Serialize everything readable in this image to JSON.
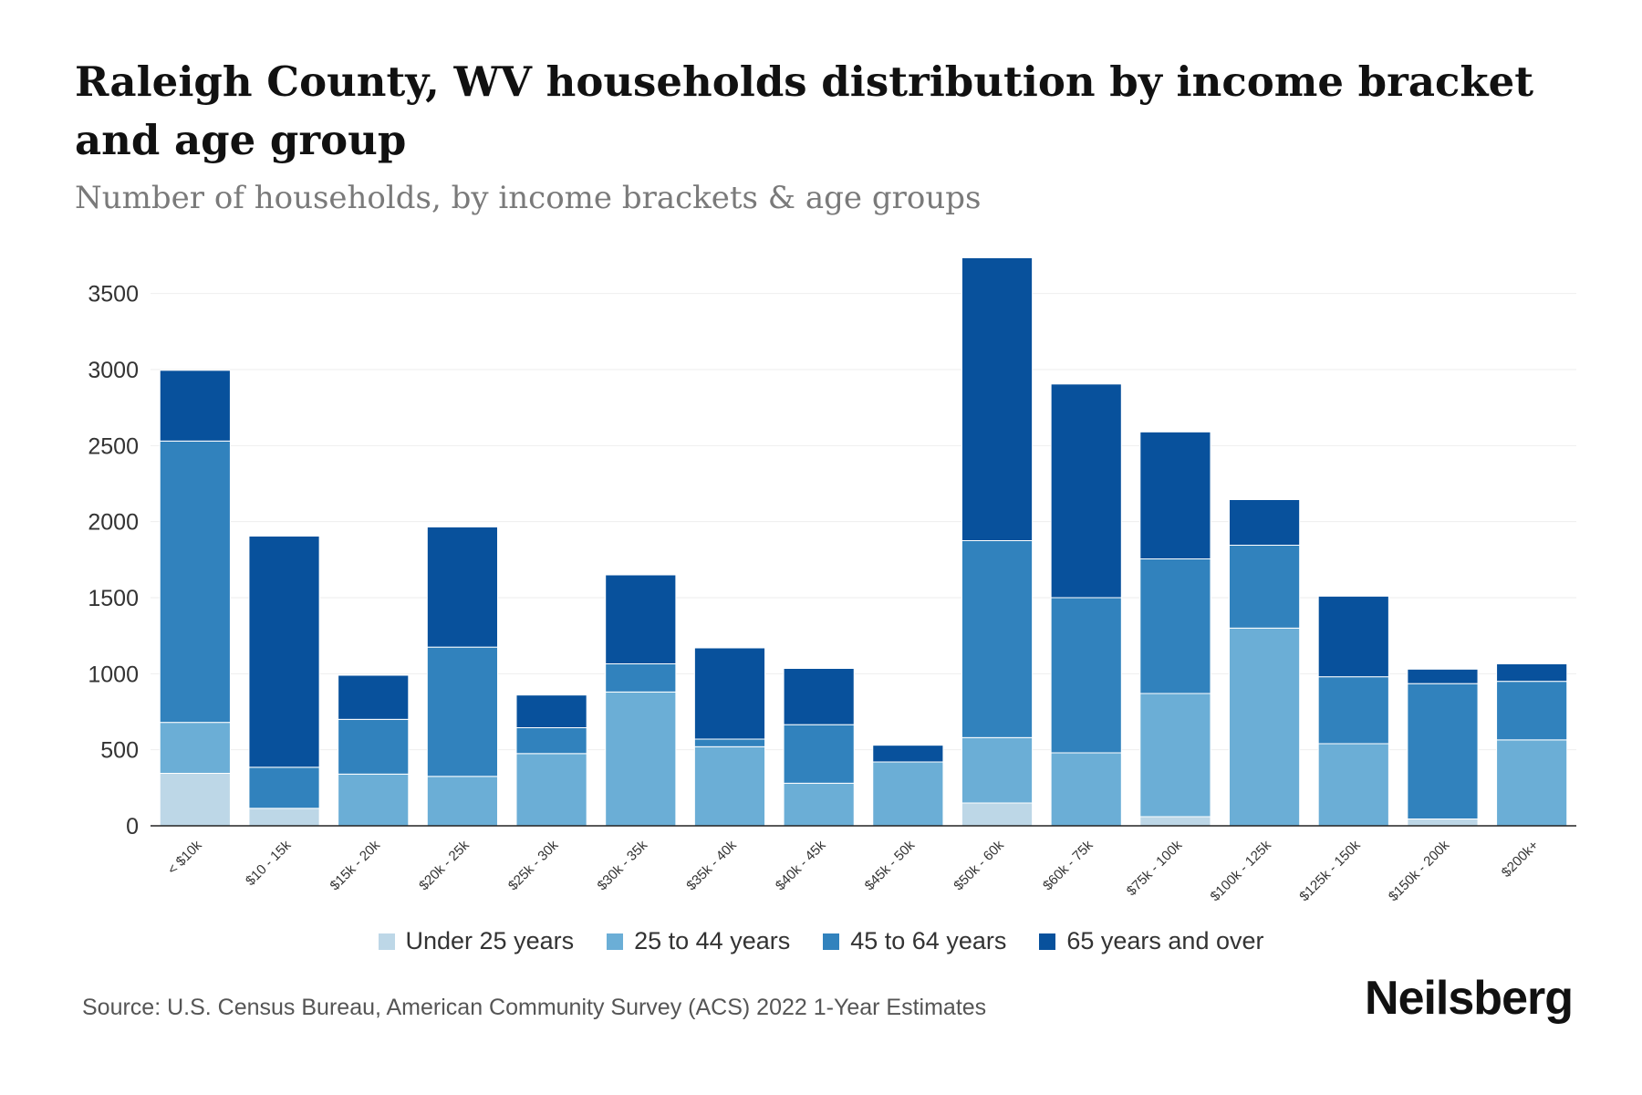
{
  "header": {
    "title": "Raleigh County, WV households distribution by income bracket and age group",
    "subtitle": "Number of households, by income brackets & age groups"
  },
  "footer": {
    "source": "Source: U.S. Census Bureau, American Community Survey (ACS) 2022 1-Year Estimates",
    "brand": "Neilsberg"
  },
  "chart_data": {
    "type": "bar",
    "stacked": true,
    "title": "Raleigh County, WV households distribution by income bracket and age group",
    "subtitle": "Number of households, by income brackets & age groups",
    "xlabel": "",
    "ylabel": "",
    "ylim": [
      0,
      3750
    ],
    "yticks": [
      0,
      500,
      1000,
      1500,
      2000,
      2500,
      3000,
      3500
    ],
    "grid": true,
    "legend_position": "bottom-center",
    "categories": [
      "< $10k",
      "$10 - 15k",
      "$15k - 20k",
      "$20k - 25k",
      "$25k - 30k",
      "$30k - 35k",
      "$35k - 40k",
      "$40k - 45k",
      "$45k - 50k",
      "$50k - 60k",
      "$60k - 75k",
      "$75k - 100k",
      "$100k - 125k",
      "$125k - 150k",
      "$150k - 200k",
      "$200k+"
    ],
    "series": [
      {
        "name": "Under 25 years",
        "color": "#bdd7e7",
        "values": [
          345,
          115,
          0,
          0,
          0,
          0,
          0,
          0,
          0,
          150,
          0,
          60,
          0,
          0,
          45,
          0
        ]
      },
      {
        "name": "25 to 44 years",
        "color": "#6baed6",
        "values": [
          335,
          0,
          340,
          325,
          475,
          880,
          520,
          280,
          420,
          430,
          480,
          810,
          1300,
          540,
          0,
          565
        ]
      },
      {
        "name": "45 to 64 years",
        "color": "#3182bd",
        "values": [
          1850,
          270,
          360,
          850,
          170,
          185,
          50,
          385,
          0,
          1295,
          1020,
          885,
          545,
          440,
          890,
          385
        ]
      },
      {
        "name": "65 years and over",
        "color": "#08519c",
        "values": [
          465,
          1520,
          290,
          790,
          215,
          585,
          600,
          370,
          110,
          1860,
          1405,
          835,
          300,
          530,
          95,
          115
        ]
      }
    ]
  }
}
